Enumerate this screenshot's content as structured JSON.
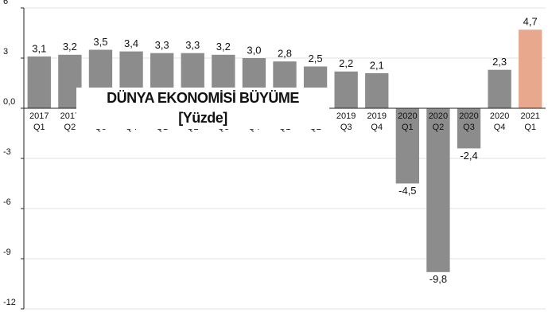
{
  "chart_data": {
    "type": "bar",
    "title": "DÜNYA EKONOMİSİ BÜYÜME",
    "subtitle": "[Yüzde]",
    "categories": [
      [
        "2017",
        "Q1"
      ],
      [
        "2017",
        "Q2"
      ],
      [
        "2017",
        "Q3"
      ],
      [
        "2017",
        "Q4"
      ],
      [
        "2018",
        "Q1"
      ],
      [
        "2018",
        "Q2"
      ],
      [
        "2018",
        "Q3"
      ],
      [
        "2018",
        "Q4"
      ],
      [
        "2019",
        "Q1"
      ],
      [
        "2019",
        "Q2"
      ],
      [
        "2019",
        "Q3"
      ],
      [
        "2019",
        "Q4"
      ],
      [
        "2020",
        "Q1"
      ],
      [
        "2020",
        "Q2"
      ],
      [
        "2020",
        "Q3"
      ],
      [
        "2020",
        "Q4"
      ],
      [
        "2021",
        "Q1"
      ]
    ],
    "values": [
      3.1,
      3.2,
      3.5,
      3.4,
      3.3,
      3.3,
      3.2,
      3.0,
      2.8,
      2.5,
      2.2,
      2.1,
      -4.5,
      -9.8,
      -2.4,
      2.3,
      4.7
    ],
    "value_labels": [
      "3,1",
      "3,2",
      "3,5",
      "3,4",
      "3,3",
      "3,3",
      "3,2",
      "3,0",
      "2,8",
      "2,5",
      "2,2",
      "2,1",
      "-4,5",
      "-9,8",
      "-2,4",
      "2,3",
      "4,7"
    ],
    "colors": [
      "#8c8c8c",
      "#8c8c8c",
      "#8c8c8c",
      "#8c8c8c",
      "#8c8c8c",
      "#8c8c8c",
      "#8c8c8c",
      "#8c8c8c",
      "#8c8c8c",
      "#8c8c8c",
      "#8c8c8c",
      "#8c8c8c",
      "#8c8c8c",
      "#8c8c8c",
      "#8c8c8c",
      "#8c8c8c",
      "#e8a88e"
    ],
    "ylim": [
      -12,
      6
    ],
    "yticks": [
      6,
      3,
      {
        "value": 0,
        "label": "0,0"
      },
      -3,
      -6,
      -9,
      -12
    ],
    "grid": true
  }
}
